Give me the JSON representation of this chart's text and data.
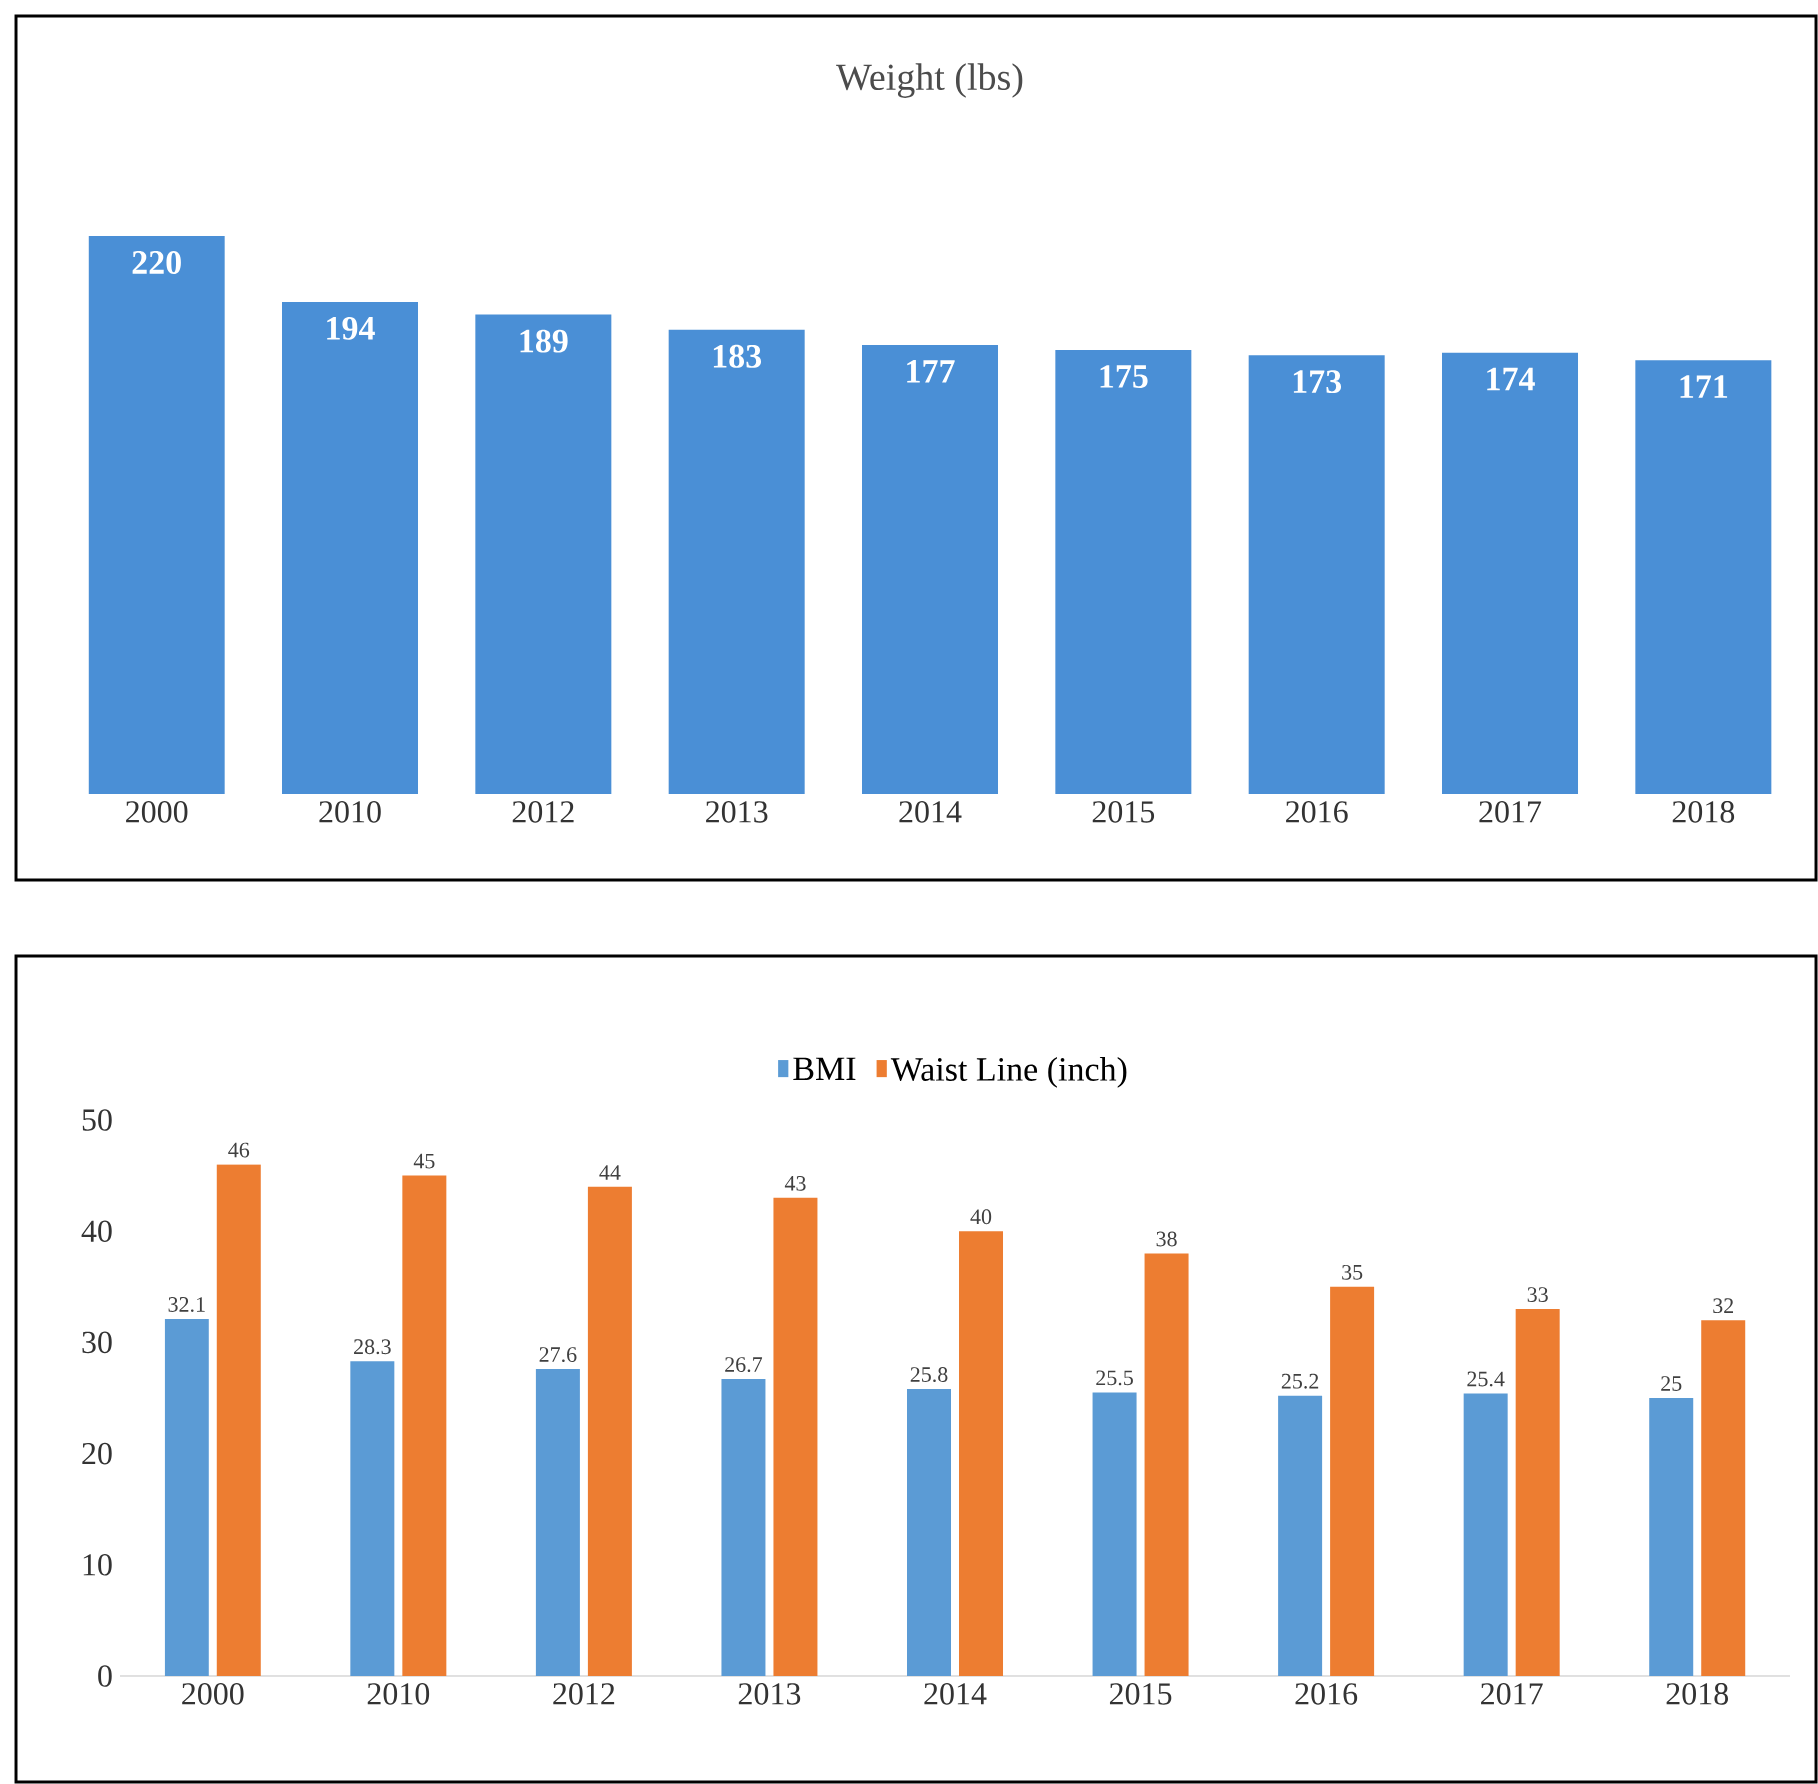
{
  "chart_data": [
    {
      "type": "bar",
      "title": "Weight (lbs)",
      "categories": [
        "2000",
        "2010",
        "2012",
        "2013",
        "2014",
        "2015",
        "2016",
        "2017",
        "2018"
      ],
      "values": [
        220,
        194,
        189,
        183,
        177,
        175,
        173,
        174,
        171
      ],
      "color": "#4a8fd6",
      "data_labels": true,
      "tick_labels": "x"
    },
    {
      "type": "bar",
      "categories": [
        "2000",
        "2010",
        "2012",
        "2013",
        "2014",
        "2015",
        "2016",
        "2017",
        "2018"
      ],
      "series": [
        {
          "name": "BMI",
          "color": "#5b9bd5",
          "values": [
            32.1,
            28.3,
            27.6,
            26.7,
            25.8,
            25.5,
            25.2,
            25.4,
            25
          ]
        },
        {
          "name": "Waist Line (inch)",
          "color": "#ed7d31",
          "values": [
            46,
            45,
            44,
            43,
            40,
            38,
            35,
            33,
            32
          ]
        }
      ],
      "ylim": [
        0,
        50
      ],
      "yticks": [
        0,
        10,
        20,
        30,
        40,
        50
      ],
      "data_labels": true,
      "legend": "top"
    }
  ]
}
